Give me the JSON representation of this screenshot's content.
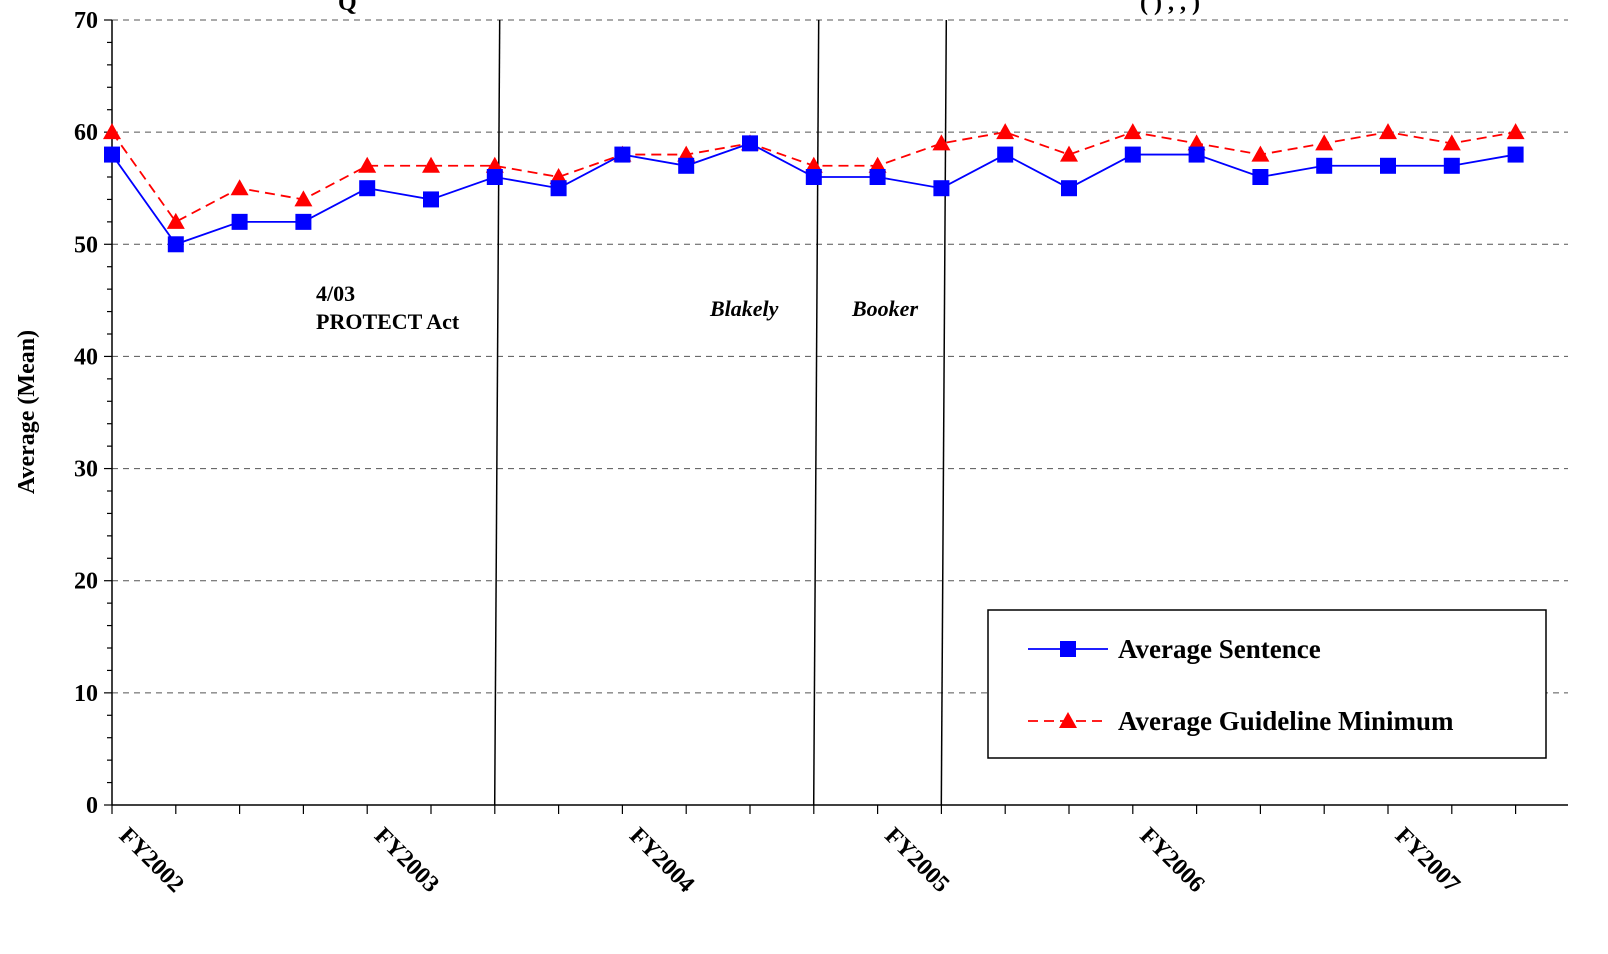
{
  "chart_data": {
    "type": "line",
    "title": "Q",
    "title_right": "(                        ) ,          ,             )",
    "ylabel": "Average (Mean)",
    "ylim": [
      0,
      70
    ],
    "yticks": [
      0,
      10,
      20,
      30,
      40,
      50,
      60,
      70
    ],
    "grid": true,
    "x_count": 23,
    "x_tick_labels": [
      {
        "index": 0,
        "label": "FY2002"
      },
      {
        "index": 4,
        "label": "FY2003"
      },
      {
        "index": 8,
        "label": "FY2004"
      },
      {
        "index": 12,
        "label": "FY2005"
      },
      {
        "index": 16,
        "label": "FY2006"
      },
      {
        "index": 20,
        "label": "FY2007"
      }
    ],
    "series": [
      {
        "name": "Average Sentence",
        "color": "#0000ff",
        "marker": "square",
        "line": "solid",
        "values": [
          58,
          50,
          52,
          52,
          55,
          54,
          56,
          55,
          58,
          57,
          59,
          56,
          56,
          55,
          58,
          55,
          58,
          58,
          56,
          57,
          57,
          57,
          58
        ]
      },
      {
        "name": "Average Guideline Minimum",
        "color": "#ff0000",
        "marker": "triangle",
        "line": "dashed",
        "values": [
          60,
          52,
          55,
          54,
          57,
          57,
          57,
          56,
          58,
          58,
          59,
          57,
          57,
          59,
          60,
          58,
          60,
          59,
          58,
          59,
          60,
          59,
          60
        ]
      }
    ],
    "events": [
      {
        "after_index": 6,
        "lines": [
          "4/03",
          "PROTECT Act"
        ],
        "italic": false
      },
      {
        "after_index": 11,
        "lines": [
          "Blakely"
        ],
        "italic": true
      },
      {
        "after_index": 13,
        "lines": [
          "Booker"
        ],
        "italic": true
      }
    ],
    "legend": {
      "position": "bottom-right",
      "entries": [
        "Average Sentence",
        "Average Guideline Minimum"
      ]
    }
  }
}
